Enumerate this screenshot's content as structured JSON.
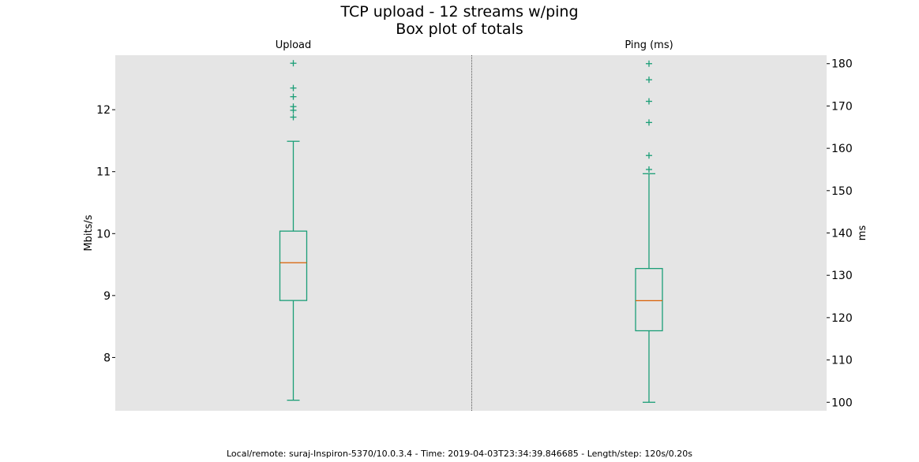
{
  "chart_data": {
    "type": "box",
    "title_line1": "TCP upload - 12 streams w/ping",
    "title_line2": "Box plot of totals",
    "footer": "Local/remote: suraj-Inspiron-5370/10.0.3.4 - Time: 2019-04-03T23:34:39.846685 - Length/step: 120s/0.20s",
    "colors": {
      "box": "#1b9e77",
      "median": "#d95f02",
      "panel_bg": "#e5e5e5",
      "divider": "#555555"
    },
    "panels": [
      {
        "name": "Upload",
        "ylabel": "Mbits/s",
        "axis_side": "left",
        "ylim": [
          7.14,
          12.88
        ],
        "ticks": [
          8,
          9,
          10,
          11,
          12
        ],
        "tick_labels": [
          "8",
          "9",
          "10",
          "11",
          "12"
        ],
        "whisker_low": 7.31,
        "q1": 8.92,
        "median": 9.53,
        "q3": 10.04,
        "whisker_high": 11.49,
        "outliers": [
          11.88,
          11.99,
          12.05,
          12.21,
          12.35,
          12.75
        ]
      },
      {
        "name": "Ping (ms)",
        "ylabel": "ms",
        "axis_side": "right",
        "ylim": [
          98,
          182
        ],
        "ticks": [
          100,
          110,
          120,
          130,
          140,
          150,
          160,
          170,
          180
        ],
        "tick_labels": [
          "100",
          "110",
          "120",
          "130",
          "140",
          "150",
          "160",
          "170",
          "180"
        ],
        "whisker_low": 100,
        "q1": 116.9,
        "median": 124,
        "q3": 131.6,
        "whisker_high": 154,
        "outliers": [
          155,
          158.3,
          166.1,
          171.1,
          176.2,
          180
        ]
      }
    ]
  }
}
